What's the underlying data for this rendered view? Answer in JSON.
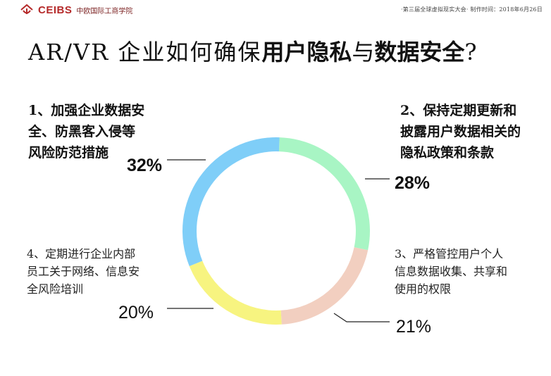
{
  "header": {
    "logo_brand": "CEIBS",
    "logo_cn": "中欧国际工商学院",
    "info": "·第三届全球虚拟现实大会·  制作时间：2018年6月26日"
  },
  "title": {
    "part1": "AR/VR 企业如何确保",
    "part2": "用户隐私",
    "part3": "与",
    "part4": "数据安全",
    "part5": "?"
  },
  "chart_data": {
    "type": "pie",
    "style": "donut",
    "categories": [
      "1、加强企业数据安全、防黑客入侵等风险防范措施",
      "2、保持定期更新和披露用户数据相关的隐私政策和条款",
      "3、严格管控用户个人信息数据收集、共享和使用的权限",
      "4、定期进行企业内部员工关于网络、信息安全风险培训"
    ],
    "values": [
      32,
      28,
      21,
      20
    ],
    "value_labels": [
      "32%",
      "28%",
      "21%",
      "20%"
    ],
    "colors": [
      "#7fcef8",
      "#a8f5c4",
      "#f2cfc0",
      "#f7f480"
    ]
  },
  "labels": {
    "l1": "1、加强企业数据安\n全、防黑客入侵等\n风险防范措施",
    "l2": "2、保持定期更新和\n披露用户数据相关的\n隐私政策和条款",
    "l3": "3、严格管控用户个人\n信息数据收集、共享和\n使用的权限",
    "l4": "4、定期进行企业内部\n员工关于网络、信息安\n全风险培训"
  }
}
